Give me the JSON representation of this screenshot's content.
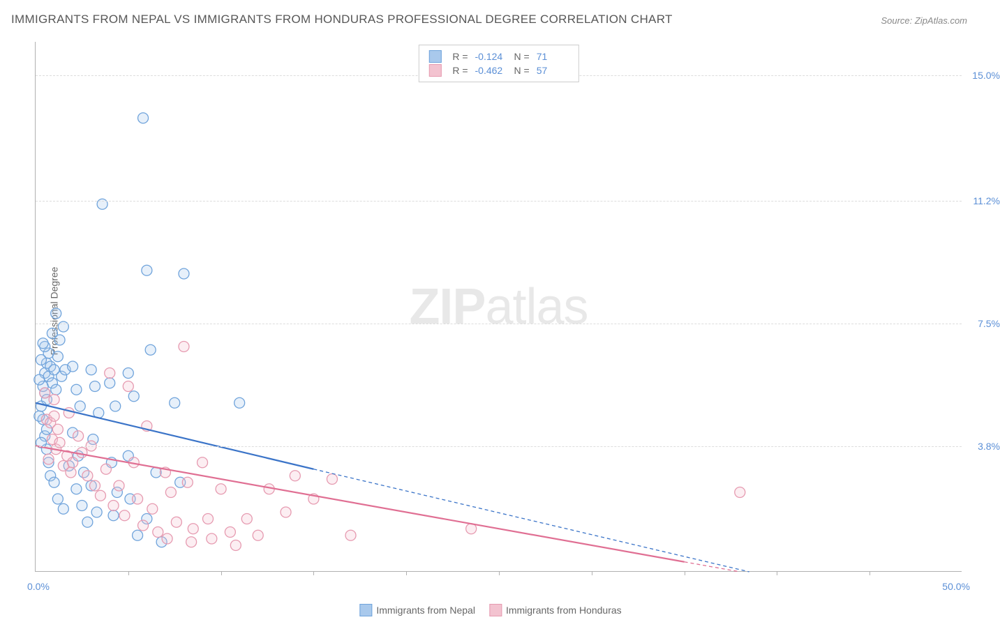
{
  "title": "IMMIGRANTS FROM NEPAL VS IMMIGRANTS FROM HONDURAS PROFESSIONAL DEGREE CORRELATION CHART",
  "source_label": "Source: ZipAtlas.com",
  "watermark": {
    "left": "ZIP",
    "right": "atlas"
  },
  "ylabel": "Professional Degree",
  "chart": {
    "type": "scatter-correlation",
    "background_color": "#ffffff",
    "grid_color": "#dcdcdc",
    "axis_color": "#b0b0b0",
    "tick_label_color": "#5b8fd6",
    "text_color": "#666666",
    "xlim": [
      0.0,
      50.0
    ],
    "ylim": [
      0.0,
      16.0
    ],
    "x_minlabel": "0.0%",
    "x_maxlabel": "50.0%",
    "y_ticks": [
      3.8,
      7.5,
      11.2,
      15.0
    ],
    "y_tick_labels": [
      "3.8%",
      "7.5%",
      "11.2%",
      "15.0%"
    ],
    "x_tick_positions": [
      5.0,
      10.0,
      15.0,
      20.0,
      25.0,
      30.0,
      35.0,
      40.0,
      45.0
    ],
    "marker_radius": 7.5,
    "marker_fill_opacity": 0.28,
    "marker_stroke_width": 1.3,
    "line_width_solid": 2.2,
    "line_width_dashed": 1.3,
    "dash_pattern": "5,4",
    "series": [
      {
        "id": "nepal",
        "label": "Immigrants from Nepal",
        "color_stroke": "#6fa3db",
        "color_fill": "#a9c9ec",
        "line_color": "#3b74c8",
        "R": "-0.124",
        "N": "71",
        "regression_solid": {
          "x1": 0.0,
          "y1": 5.1,
          "x2": 15.0,
          "y2": 3.1
        },
        "regression_dashed": {
          "x1": 15.0,
          "y1": 3.1,
          "x2": 38.5,
          "y2": 0.0
        },
        "points": [
          [
            0.5,
            6.0
          ],
          [
            0.6,
            6.3
          ],
          [
            0.7,
            5.9
          ],
          [
            0.8,
            6.2
          ],
          [
            0.9,
            5.7
          ],
          [
            0.5,
            5.4
          ],
          [
            0.6,
            5.2
          ],
          [
            0.7,
            6.6
          ],
          [
            1.0,
            6.1
          ],
          [
            1.1,
            5.5
          ],
          [
            0.4,
            4.6
          ],
          [
            0.5,
            4.1
          ],
          [
            0.6,
            3.7
          ],
          [
            0.7,
            3.3
          ],
          [
            0.8,
            2.9
          ],
          [
            1.3,
            7.0
          ],
          [
            1.5,
            7.4
          ],
          [
            1.2,
            6.5
          ],
          [
            1.4,
            5.9
          ],
          [
            1.6,
            6.1
          ],
          [
            2.0,
            6.2
          ],
          [
            2.2,
            5.5
          ],
          [
            2.4,
            5.0
          ],
          [
            2.0,
            4.2
          ],
          [
            2.3,
            3.5
          ],
          [
            2.6,
            3.0
          ],
          [
            2.2,
            2.5
          ],
          [
            2.5,
            2.0
          ],
          [
            2.8,
            1.5
          ],
          [
            3.0,
            6.1
          ],
          [
            3.2,
            5.6
          ],
          [
            3.4,
            4.8
          ],
          [
            3.1,
            4.0
          ],
          [
            3.0,
            2.6
          ],
          [
            3.3,
            1.8
          ],
          [
            4.0,
            5.7
          ],
          [
            4.3,
            5.0
          ],
          [
            4.1,
            3.3
          ],
          [
            4.4,
            2.4
          ],
          [
            4.2,
            1.7
          ],
          [
            5.0,
            6.0
          ],
          [
            5.3,
            5.3
          ],
          [
            5.0,
            3.5
          ],
          [
            5.1,
            2.2
          ],
          [
            5.5,
            1.1
          ],
          [
            6.0,
            9.1
          ],
          [
            6.2,
            6.7
          ],
          [
            6.5,
            3.0
          ],
          [
            6.0,
            1.6
          ],
          [
            6.8,
            0.9
          ],
          [
            7.5,
            5.1
          ],
          [
            8.0,
            9.0
          ],
          [
            7.8,
            2.7
          ],
          [
            3.6,
            11.1
          ],
          [
            5.8,
            13.7
          ],
          [
            11.0,
            5.1
          ],
          [
            1.0,
            2.7
          ],
          [
            1.2,
            2.2
          ],
          [
            1.5,
            1.9
          ],
          [
            1.8,
            3.2
          ],
          [
            0.9,
            7.2
          ],
          [
            1.1,
            7.8
          ],
          [
            0.3,
            5.0
          ],
          [
            0.4,
            5.6
          ],
          [
            0.3,
            6.4
          ],
          [
            0.5,
            6.8
          ],
          [
            0.2,
            5.8
          ],
          [
            0.4,
            6.9
          ],
          [
            0.6,
            4.3
          ],
          [
            0.2,
            4.7
          ],
          [
            0.3,
            3.9
          ]
        ]
      },
      {
        "id": "honduras",
        "label": "Immigrants from Honduras",
        "color_stroke": "#e69ab0",
        "color_fill": "#f3c3d0",
        "line_color": "#e06f93",
        "R": "-0.462",
        "N": "57",
        "regression_solid": {
          "x1": 0.0,
          "y1": 3.8,
          "x2": 35.0,
          "y2": 0.3
        },
        "regression_dashed": {
          "x1": 35.0,
          "y1": 0.3,
          "x2": 38.0,
          "y2": 0.0
        },
        "points": [
          [
            0.6,
            4.6
          ],
          [
            0.8,
            4.5
          ],
          [
            1.0,
            4.7
          ],
          [
            1.2,
            4.3
          ],
          [
            0.9,
            4.0
          ],
          [
            1.1,
            3.7
          ],
          [
            0.7,
            3.4
          ],
          [
            1.3,
            3.9
          ],
          [
            1.5,
            3.2
          ],
          [
            1.7,
            3.5
          ],
          [
            1.9,
            3.0
          ],
          [
            2.0,
            3.3
          ],
          [
            2.3,
            4.1
          ],
          [
            2.5,
            3.6
          ],
          [
            2.8,
            2.9
          ],
          [
            3.0,
            3.8
          ],
          [
            3.2,
            2.6
          ],
          [
            3.5,
            2.3
          ],
          [
            3.8,
            3.1
          ],
          [
            4.0,
            6.0
          ],
          [
            4.2,
            2.0
          ],
          [
            4.5,
            2.6
          ],
          [
            4.8,
            1.7
          ],
          [
            5.0,
            5.6
          ],
          [
            5.3,
            3.3
          ],
          [
            5.5,
            2.2
          ],
          [
            5.8,
            1.4
          ],
          [
            6.0,
            4.4
          ],
          [
            6.3,
            1.9
          ],
          [
            6.6,
            1.2
          ],
          [
            7.0,
            3.0
          ],
          [
            7.3,
            2.4
          ],
          [
            7.6,
            1.5
          ],
          [
            7.1,
            1.0
          ],
          [
            8.0,
            6.8
          ],
          [
            8.2,
            2.7
          ],
          [
            8.5,
            1.3
          ],
          [
            8.4,
            0.9
          ],
          [
            9.0,
            3.3
          ],
          [
            9.3,
            1.6
          ],
          [
            9.5,
            1.0
          ],
          [
            10.0,
            2.5
          ],
          [
            10.5,
            1.2
          ],
          [
            10.8,
            0.8
          ],
          [
            11.4,
            1.6
          ],
          [
            12.0,
            1.1
          ],
          [
            12.6,
            2.5
          ],
          [
            13.5,
            1.8
          ],
          [
            14.0,
            2.9
          ],
          [
            15.0,
            2.2
          ],
          [
            16.0,
            2.8
          ],
          [
            17.0,
            1.1
          ],
          [
            23.5,
            1.3
          ],
          [
            38.0,
            2.4
          ],
          [
            1.0,
            5.2
          ],
          [
            0.5,
            5.4
          ],
          [
            1.8,
            4.8
          ]
        ]
      }
    ]
  },
  "stats_box": {
    "r_label": "R  =",
    "n_label": "N  ="
  },
  "bottom_legend_label_a": "Immigrants from Nepal",
  "bottom_legend_label_b": "Immigrants from Honduras"
}
